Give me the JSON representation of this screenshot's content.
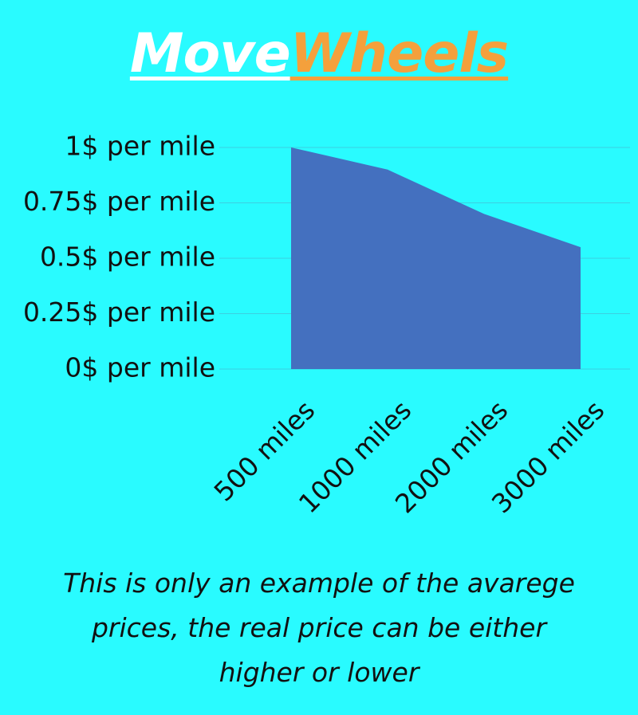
{
  "chart_data": {
    "type": "area",
    "title_parts": [
      {
        "text": "Move",
        "color": "#ffffff"
      },
      {
        "text": "Wheels",
        "color": "#f4a03c"
      }
    ],
    "categories": [
      "500 miles",
      "1000 miles",
      "2000 miles",
      "3000 miles"
    ],
    "values": [
      1,
      0.9,
      0.7,
      0.55
    ],
    "color": "#4470bf",
    "ylim": [
      0,
      1
    ],
    "yticks": [
      {
        "value": 0,
        "label": "0$ per mile"
      },
      {
        "value": 0.25,
        "label": "0.25$ per mile"
      },
      {
        "value": 0.5,
        "label": "0.5$ per mile"
      },
      {
        "value": 0.75,
        "label": "0.75$ per mile"
      },
      {
        "value": 1,
        "label": "1$ per mile"
      }
    ],
    "grid": true,
    "note": [
      "This is only an example of the avarege",
      "prices, the real price can be either",
      "higher or lower"
    ]
  }
}
